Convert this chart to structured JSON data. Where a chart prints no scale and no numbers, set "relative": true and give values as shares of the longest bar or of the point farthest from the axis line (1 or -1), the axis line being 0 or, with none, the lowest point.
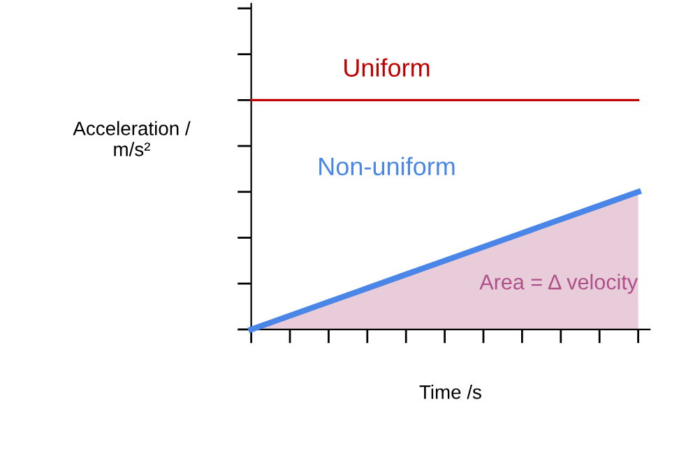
{
  "chart_data": {
    "type": "line",
    "relative": true,
    "xlabel": "Time /s",
    "ylabel": "Acceleration /\nm/s²",
    "categories": [
      null,
      null,
      null,
      null,
      null,
      null,
      null,
      null,
      null,
      null,
      null
    ],
    "series": [
      {
        "name": "Uniform",
        "color": "#c00000",
        "values": [
          1,
          1,
          1,
          1,
          1,
          1,
          1,
          1,
          1,
          1,
          1
        ]
      },
      {
        "name": "Non-uniform",
        "type": "area",
        "color": "#4a86e8",
        "values": [
          0,
          0.06,
          0.12,
          0.18,
          0.24,
          0.3,
          0.36,
          0.42,
          0.48,
          0.54,
          0.6
        ]
      }
    ],
    "annotations": [
      "Area = Δ velocity"
    ],
    "grid": false,
    "legend": false,
    "marker": "none",
    "line_style": "solid"
  }
}
